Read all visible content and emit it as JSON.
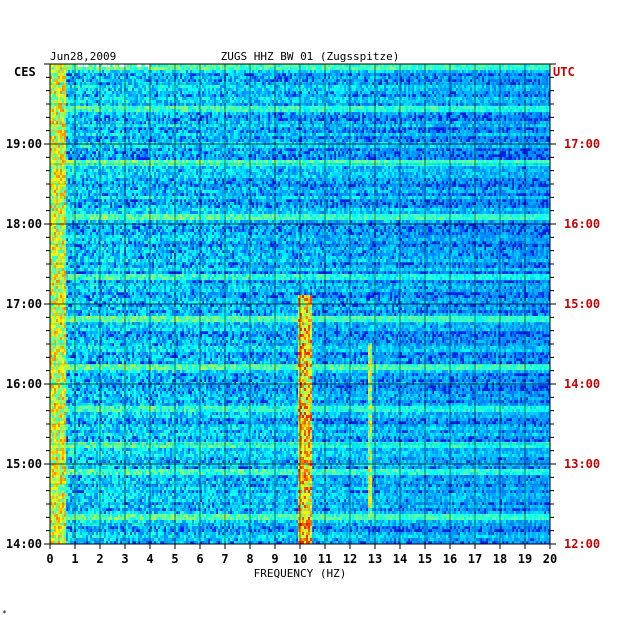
{
  "header": {
    "date": "Jun28,2009",
    "station": "ZUGS HHZ BW 01 (Zugsspitze)"
  },
  "footer_mark": "*",
  "chart_data": {
    "type": "heatmap",
    "title": "ZUGS HHZ BW 01 (Zugsspitze)",
    "date": "Jun28,2009",
    "xlabel": "FREQUENCY (HZ)",
    "xlim": [
      0,
      20
    ],
    "x_ticks": [
      "0",
      "1",
      "2",
      "3",
      "4",
      "5",
      "6",
      "7",
      "8",
      "9",
      "10",
      "11",
      "12",
      "13",
      "14",
      "15",
      "16",
      "17",
      "18",
      "19",
      "20"
    ],
    "left_axis": {
      "label": "CES",
      "color": "#000000",
      "ticks": [
        "14:00",
        "15:00",
        "16:00",
        "17:00",
        "18:00",
        "19:00"
      ],
      "range_hours": [
        14.0,
        20.0
      ]
    },
    "right_axis": {
      "label": "UTC",
      "color": "#cc0000",
      "ticks": [
        "12:00",
        "13:00",
        "14:00",
        "15:00",
        "16:00",
        "17:00"
      ],
      "range_hours": [
        12.0,
        18.0
      ]
    },
    "grid": true,
    "colormap": "jet",
    "background_color": "#0a1ee6",
    "features": [
      {
        "name": "low-frequency energy",
        "freq_range": [
          0.0,
          0.6
        ],
        "level": 0.75
      },
      {
        "name": "10 Hz band",
        "freq_range": [
          9.9,
          10.5
        ],
        "time_range": [
          14.0,
          17.1
        ],
        "level": 0.85
      },
      {
        "name": "12.8 Hz band",
        "freq_range": [
          12.7,
          12.9
        ],
        "time_range": [
          14.3,
          16.5
        ],
        "level": 0.7
      }
    ],
    "strong_rows_hours": [
      14.35,
      14.9,
      15.25,
      15.7,
      16.2,
      16.8,
      17.35,
      18.1,
      18.75,
      19.45,
      19.95
    ]
  }
}
